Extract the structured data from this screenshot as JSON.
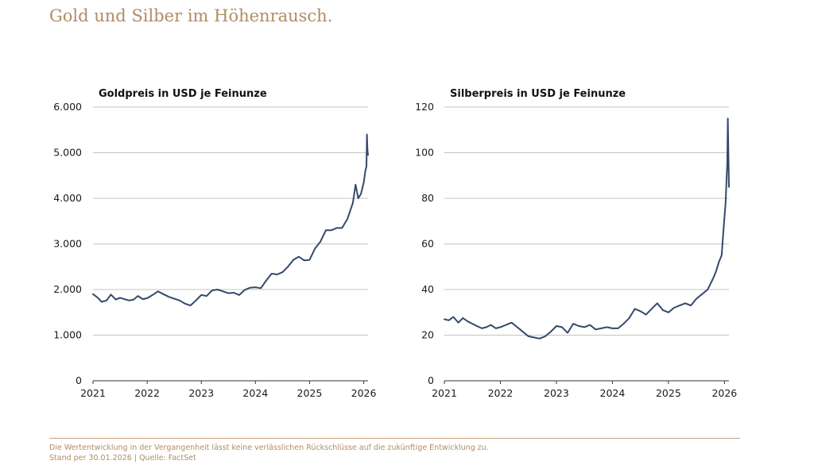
{
  "headline": "Gold und Silber im Höhenrausch.",
  "line_color": "#34496b",
  "accent_color": "#b08d63",
  "footer": {
    "disclaimer": "Die Wertentwicklung in der Vergangenheit lässt keine verlässlichen Rückschlüsse auf die zukünftige Entwicklung zu.",
    "source": "Stand per 30.01.2026 | Quelle: FactSet"
  },
  "chart_data": [
    {
      "type": "line",
      "title": "Goldpreis in USD je Feinunze",
      "xlabel": "",
      "ylabel": "",
      "xlim": [
        2021,
        2026.08
      ],
      "ylim": [
        0,
        6000
      ],
      "yticks": [
        0,
        1000,
        2000,
        3000,
        4000,
        5000,
        6000
      ],
      "ytick_labels": [
        "0",
        "1.000",
        "2.000",
        "3.000",
        "4.000",
        "5.000",
        "6.000"
      ],
      "xticks": [
        2021,
        2022,
        2023,
        2024,
        2025,
        2026
      ],
      "xtick_labels": [
        "2021",
        "2022",
        "2023",
        "2024",
        "2025",
        "2026"
      ],
      "grid": true,
      "series": [
        {
          "name": "Gold",
          "x": [
            2021.0,
            2021.08,
            2021.16,
            2021.25,
            2021.33,
            2021.42,
            2021.5,
            2021.58,
            2021.67,
            2021.75,
            2021.83,
            2021.92,
            2022.0,
            2022.1,
            2022.2,
            2022.3,
            2022.4,
            2022.5,
            2022.6,
            2022.7,
            2022.8,
            2022.9,
            2023.0,
            2023.1,
            2023.2,
            2023.3,
            2023.4,
            2023.5,
            2023.6,
            2023.7,
            2023.8,
            2023.9,
            2024.0,
            2024.1,
            2024.2,
            2024.3,
            2024.4,
            2024.5,
            2024.6,
            2024.7,
            2024.8,
            2024.9,
            2025.0,
            2025.1,
            2025.2,
            2025.3,
            2025.4,
            2025.5,
            2025.6,
            2025.7,
            2025.8,
            2025.85,
            2025.9,
            2025.95,
            2026.0,
            2026.03,
            2026.05,
            2026.06,
            2026.07,
            2026.08
          ],
          "y": [
            1900,
            1830,
            1730,
            1760,
            1890,
            1780,
            1820,
            1790,
            1760,
            1780,
            1860,
            1790,
            1810,
            1880,
            1960,
            1900,
            1840,
            1800,
            1760,
            1690,
            1650,
            1760,
            1880,
            1860,
            1980,
            2000,
            1960,
            1920,
            1930,
            1880,
            1990,
            2040,
            2050,
            2030,
            2200,
            2350,
            2330,
            2380,
            2500,
            2650,
            2720,
            2640,
            2650,
            2900,
            3050,
            3300,
            3300,
            3350,
            3350,
            3550,
            3900,
            4300,
            4000,
            4100,
            4350,
            4600,
            4700,
            5400,
            5050,
            4950
          ]
        }
      ]
    },
    {
      "type": "line",
      "title": "Silberpreis in USD je Feinunze",
      "xlabel": "",
      "ylabel": "",
      "xlim": [
        2021,
        2026.08
      ],
      "ylim": [
        0,
        120
      ],
      "yticks": [
        0,
        20,
        40,
        60,
        80,
        100,
        120
      ],
      "ytick_labels": [
        "0",
        "20",
        "40",
        "60",
        "80",
        "100",
        "120"
      ],
      "xticks": [
        2021,
        2022,
        2023,
        2024,
        2025,
        2026
      ],
      "xtick_labels": [
        "2021",
        "2022",
        "2023",
        "2024",
        "2025",
        "2026"
      ],
      "grid": true,
      "series": [
        {
          "name": "Silber",
          "x": [
            2021.0,
            2021.08,
            2021.16,
            2021.25,
            2021.33,
            2021.42,
            2021.5,
            2021.58,
            2021.67,
            2021.75,
            2021.83,
            2021.92,
            2022.0,
            2022.1,
            2022.2,
            2022.3,
            2022.4,
            2022.5,
            2022.6,
            2022.7,
            2022.8,
            2022.9,
            2023.0,
            2023.1,
            2023.2,
            2023.3,
            2023.4,
            2023.5,
            2023.6,
            2023.7,
            2023.8,
            2023.9,
            2024.0,
            2024.1,
            2024.2,
            2024.3,
            2024.4,
            2024.5,
            2024.6,
            2024.7,
            2024.8,
            2024.9,
            2025.0,
            2025.1,
            2025.2,
            2025.3,
            2025.4,
            2025.5,
            2025.6,
            2025.7,
            2025.8,
            2025.85,
            2025.9,
            2025.95,
            2026.0,
            2026.02,
            2026.04,
            2026.05,
            2026.06,
            2026.07,
            2026.08
          ],
          "y": [
            27,
            26.5,
            28,
            25.5,
            27.5,
            26,
            25,
            24,
            23,
            23.5,
            24.5,
            23,
            23.5,
            24.5,
            25.5,
            23.5,
            21.5,
            19.5,
            19,
            18.5,
            19.5,
            21.5,
            24,
            23.5,
            21,
            25,
            24,
            23.5,
            24.5,
            22.5,
            23,
            23.5,
            23,
            23,
            25,
            27.5,
            31.5,
            30.5,
            29,
            31.5,
            34,
            31,
            30,
            32,
            33,
            34,
            33,
            36,
            38,
            40,
            45,
            48,
            52,
            55,
            72,
            78,
            90,
            95,
            115,
            100,
            85
          ]
        }
      ]
    }
  ]
}
